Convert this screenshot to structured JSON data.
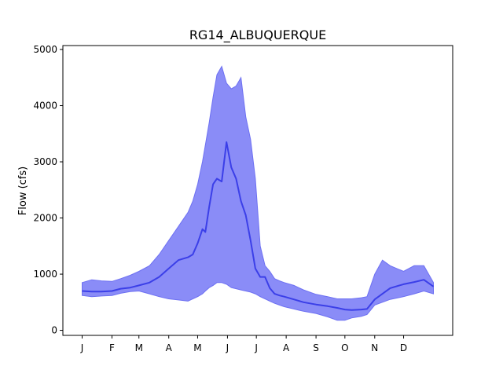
{
  "chart_data": {
    "type": "area",
    "title": "RG14_ALBUQUERQUE",
    "xlabel": "",
    "ylabel": "Flow (cfs)",
    "ylim": [
      -90,
      5070
    ],
    "xlim": [
      -20,
      385
    ],
    "grid": false,
    "x_tick_days": [
      0,
      31,
      59,
      90,
      120,
      151,
      181,
      212,
      243,
      273,
      304,
      334
    ],
    "x_tick_labels": [
      "J",
      "F",
      "M",
      "A",
      "M",
      "J",
      "J",
      "A",
      "S",
      "O",
      "N",
      "D"
    ],
    "y_ticks": [
      0,
      1000,
      2000,
      3000,
      4000,
      5000
    ],
    "y_tick_labels": [
      "0",
      "1000",
      "2000",
      "3000",
      "4000",
      "5000"
    ],
    "band_color": "#8a8cf7",
    "band_edge_color": "#6d70f2",
    "median_color": "#3b3fe8",
    "x": [
      0,
      10,
      20,
      31,
      40,
      50,
      59,
      70,
      80,
      90,
      100,
      110,
      115,
      120,
      125,
      128,
      132,
      136,
      140,
      145,
      150,
      155,
      160,
      165,
      170,
      175,
      180,
      185,
      190,
      195,
      200,
      205,
      210,
      220,
      230,
      243,
      255,
      265,
      273,
      280,
      290,
      296,
      304,
      312,
      320,
      334,
      345,
      355,
      365
    ],
    "median": [
      700,
      690,
      690,
      700,
      740,
      760,
      800,
      850,
      950,
      1100,
      1250,
      1300,
      1350,
      1550,
      1800,
      1750,
      2200,
      2600,
      2700,
      2650,
      3350,
      2900,
      2700,
      2300,
      2050,
      1600,
      1100,
      950,
      950,
      750,
      650,
      620,
      600,
      550,
      500,
      460,
      430,
      400,
      370,
      360,
      370,
      380,
      550,
      650,
      750,
      820,
      860,
      900,
      780
    ],
    "upper": [
      850,
      900,
      880,
      870,
      920,
      980,
      1050,
      1150,
      1350,
      1600,
      1850,
      2100,
      2300,
      2600,
      3000,
      3300,
      3700,
      4150,
      4550,
      4700,
      4400,
      4300,
      4350,
      4500,
      3800,
      3400,
      2700,
      1500,
      1150,
      1050,
      920,
      880,
      850,
      800,
      720,
      640,
      600,
      560,
      560,
      560,
      580,
      600,
      1000,
      1250,
      1150,
      1050,
      1150,
      1150,
      850
    ],
    "lower": [
      620,
      600,
      610,
      620,
      660,
      690,
      700,
      650,
      600,
      560,
      540,
      520,
      560,
      600,
      650,
      700,
      760,
      800,
      850,
      850,
      820,
      760,
      740,
      720,
      700,
      680,
      650,
      600,
      560,
      520,
      480,
      450,
      420,
      380,
      340,
      300,
      240,
      180,
      180,
      220,
      250,
      280,
      450,
      500,
      550,
      600,
      650,
      700,
      650
    ]
  }
}
